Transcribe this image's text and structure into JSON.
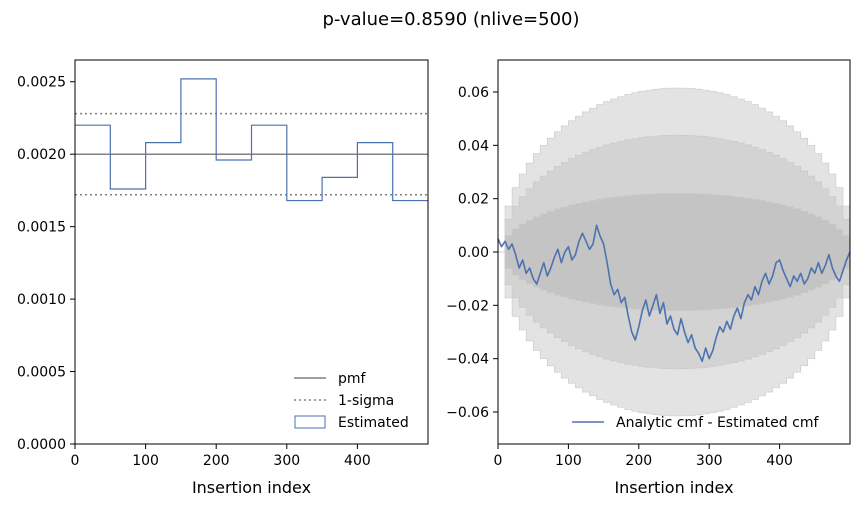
{
  "figure": {
    "title": "p-value=0.8590 (nlive=500)"
  },
  "colors": {
    "pmf": "#808080",
    "sigma": "#808080",
    "estimated": "#4c72b0",
    "band_outer": "#e3e3e3",
    "band_middle": "#d3d3d3",
    "band_inner": "#c4c4c4",
    "band_edge": "#c8c8c8"
  },
  "chart_data": [
    {
      "type": "step",
      "xlabel": "Insertion index",
      "ylabel": "",
      "xlim": [
        0,
        500
      ],
      "ylim": [
        0,
        0.00265
      ],
      "xticks": [
        0,
        100,
        200,
        300,
        400
      ],
      "xtick_labels": [
        "0",
        "100",
        "200",
        "300",
        "400"
      ],
      "yticks": [
        0,
        0.0005,
        0.001,
        0.0015,
        0.002,
        0.0025
      ],
      "ytick_labels": [
        "0.0000",
        "0.0005",
        "0.0010",
        "0.0015",
        "0.0020",
        "0.0025"
      ],
      "pmf": 0.002,
      "sigma_upper": 0.00228,
      "sigma_lower": 0.00172,
      "bin_edges": [
        0,
        50,
        100,
        150,
        200,
        250,
        300,
        350,
        400,
        450,
        500
      ],
      "estimated": [
        0.0022,
        0.00176,
        0.00208,
        0.00252,
        0.00196,
        0.0022,
        0.00168,
        0.00184,
        0.00208,
        0.00168
      ],
      "legend": {
        "position": "lower right",
        "entries": [
          "pmf",
          "1-sigma",
          "Estimated"
        ]
      }
    },
    {
      "type": "line",
      "xlabel": "Insertion index",
      "ylabel": "",
      "xlim": [
        0,
        500
      ],
      "ylim": [
        -0.072,
        0.072
      ],
      "xticks": [
        0,
        100,
        200,
        300,
        400
      ],
      "xtick_labels": [
        "0",
        "100",
        "200",
        "300",
        "400"
      ],
      "yticks": [
        -0.06,
        -0.04,
        -0.02,
        0.0,
        0.02,
        0.04,
        0.06
      ],
      "ytick_labels": [
        "−0.06",
        "−0.04",
        "−0.02",
        "0.00",
        "0.02",
        "0.04",
        "0.06"
      ],
      "sigma_bands": [
        {
          "sigma": 3,
          "peak": 0.0615
        },
        {
          "sigma": 2,
          "peak": 0.0438
        },
        {
          "sigma": 1,
          "peak": 0.022
        }
      ],
      "series": [
        {
          "name": "Analytic cmf - Estimated cmf",
          "x": [
            0,
            5,
            10,
            15,
            20,
            25,
            30,
            35,
            40,
            45,
            50,
            55,
            60,
            65,
            70,
            75,
            80,
            85,
            90,
            95,
            100,
            105,
            110,
            115,
            120,
            125,
            130,
            135,
            140,
            145,
            150,
            155,
            160,
            165,
            170,
            175,
            180,
            185,
            190,
            195,
            200,
            205,
            210,
            215,
            220,
            225,
            230,
            235,
            240,
            245,
            250,
            255,
            260,
            265,
            270,
            275,
            280,
            285,
            290,
            295,
            300,
            305,
            310,
            315,
            320,
            325,
            330,
            335,
            340,
            345,
            350,
            355,
            360,
            365,
            370,
            375,
            380,
            385,
            390,
            395,
            400,
            405,
            410,
            415,
            420,
            425,
            430,
            435,
            440,
            445,
            450,
            455,
            460,
            465,
            470,
            475,
            480,
            485,
            490,
            495,
            500
          ],
          "y": [
            0.005,
            0.002,
            0.004,
            0.001,
            0.003,
            -0.001,
            -0.006,
            -0.003,
            -0.008,
            -0.006,
            -0.01,
            -0.012,
            -0.008,
            -0.004,
            -0.009,
            -0.006,
            -0.002,
            0.001,
            -0.004,
            0.0,
            0.002,
            -0.003,
            -0.001,
            0.004,
            0.007,
            0.004,
            0.001,
            0.003,
            0.01,
            0.006,
            0.003,
            -0.004,
            -0.012,
            -0.016,
            -0.014,
            -0.019,
            -0.017,
            -0.024,
            -0.03,
            -0.033,
            -0.028,
            -0.022,
            -0.018,
            -0.024,
            -0.02,
            -0.016,
            -0.023,
            -0.019,
            -0.027,
            -0.024,
            -0.029,
            -0.031,
            -0.025,
            -0.03,
            -0.034,
            -0.031,
            -0.036,
            -0.038,
            -0.041,
            -0.036,
            -0.04,
            -0.037,
            -0.032,
            -0.028,
            -0.03,
            -0.026,
            -0.029,
            -0.024,
            -0.021,
            -0.025,
            -0.019,
            -0.016,
            -0.018,
            -0.013,
            -0.016,
            -0.011,
            -0.008,
            -0.012,
            -0.009,
            -0.004,
            -0.003,
            -0.007,
            -0.01,
            -0.013,
            -0.009,
            -0.011,
            -0.008,
            -0.012,
            -0.01,
            -0.006,
            -0.008,
            -0.004,
            -0.008,
            -0.005,
            -0.001,
            -0.006,
            -0.009,
            -0.011,
            -0.007,
            -0.003,
            0.0
          ]
        }
      ],
      "legend": {
        "position": "lower right",
        "entries": [
          "Analytic cmf - Estimated cmf"
        ]
      }
    }
  ]
}
